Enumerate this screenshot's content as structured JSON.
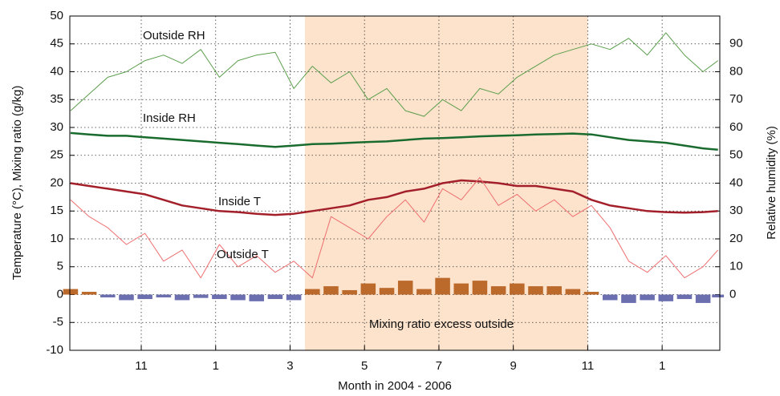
{
  "chart_data": {
    "type": "line",
    "xlabel": "Month in 2004 - 2006",
    "ylabel": "Temperature (°C), Mixing ratio (g/kg)",
    "y2label": "Relative humidity (%)",
    "xlim": [
      9.08,
      26.55
    ],
    "xticks": [
      11,
      {
        "value": 13,
        "label": "1"
      },
      {
        "value": 15,
        "label": "3"
      },
      {
        "value": 17,
        "label": "5"
      },
      {
        "value": 19,
        "label": "7"
      },
      {
        "value": 21,
        "label": "9"
      },
      {
        "value": 23,
        "label": "11"
      },
      {
        "value": 25,
        "label": "1"
      }
    ],
    "ylim": [
      -10,
      50
    ],
    "yticks": [
      -10,
      -5,
      0,
      5,
      10,
      15,
      20,
      25,
      30,
      35,
      40,
      45,
      50
    ],
    "y2lim": [
      -20,
      100
    ],
    "y2ticks": [
      0,
      10,
      20,
      30,
      40,
      50,
      60,
      70,
      80,
      90
    ],
    "grid": true,
    "shaded_span": [
      15.4,
      23
    ],
    "shaded_color": "#fde3cc",
    "x": [
      9.1,
      9.6,
      10.1,
      10.6,
      11.1,
      11.6,
      12.1,
      12.6,
      13.1,
      13.6,
      14.1,
      14.6,
      15.1,
      15.6,
      16.1,
      16.6,
      17.1,
      17.6,
      18.1,
      18.6,
      19.1,
      19.6,
      20.1,
      20.6,
      21.1,
      21.6,
      22.1,
      22.6,
      23.1,
      23.6,
      24.1,
      24.6,
      25.1,
      25.6,
      26.1,
      26.5
    ],
    "series": [
      {
        "name": "Outside RH",
        "color": "#5a9e4b",
        "width": 1,
        "axis": "y2",
        "values": [
          66,
          72,
          78,
          80,
          84,
          86,
          83,
          88,
          78,
          84,
          86,
          87,
          74,
          82,
          76,
          80,
          70,
          74,
          66,
          64,
          70,
          66,
          74,
          72,
          78,
          82,
          86,
          88,
          90,
          88,
          92,
          86,
          94,
          86,
          80,
          84
        ]
      },
      {
        "name": "Inside RH",
        "color": "#1a6b2e",
        "width": 2.5,
        "axis": "y2",
        "values": [
          58,
          57.5,
          57,
          57,
          56.5,
          56,
          55.5,
          55,
          54.5,
          54,
          53.5,
          53,
          53.5,
          54,
          54.2,
          54.5,
          54.8,
          55,
          55.5,
          56,
          56.2,
          56.5,
          56.8,
          57,
          57.2,
          57.5,
          57.6,
          57.8,
          57.5,
          56.5,
          55.5,
          55,
          54.5,
          53.5,
          52.5,
          52
        ]
      },
      {
        "name": "Inside T",
        "color": "#a3202a",
        "width": 2.5,
        "values": [
          20,
          19.5,
          19,
          18.5,
          18,
          17,
          16,
          15.5,
          15,
          14.8,
          14.5,
          14.3,
          14.5,
          15,
          15.5,
          16,
          17,
          17.5,
          18.5,
          19,
          20,
          20.5,
          20.3,
          20,
          19.5,
          19.5,
          19,
          18.5,
          17,
          16,
          15.5,
          15,
          14.8,
          14.7,
          14.8,
          15
        ]
      },
      {
        "name": "Outside T",
        "color": "#ee6f70",
        "width": 1,
        "values": [
          17,
          14,
          12,
          9,
          11,
          6,
          8,
          3,
          9,
          5,
          7,
          4,
          6,
          3,
          14,
          12,
          10,
          14,
          17,
          13,
          19,
          17,
          21,
          16,
          18,
          15,
          17,
          14,
          16,
          12,
          6,
          4,
          7,
          3,
          5,
          8
        ]
      },
      {
        "name": "Mixing ratio excess outside",
        "type": "bar",
        "color": "#bb6a2c",
        "negative_color": "#6b6fb0",
        "values": [
          1,
          0.5,
          -0.5,
          -1,
          -0.8,
          -0.5,
          -1,
          -0.6,
          -0.8,
          -1,
          -1.2,
          -0.8,
          -1,
          1,
          1.5,
          0.8,
          2,
          1.2,
          2.5,
          1,
          3,
          2,
          2.5,
          1.5,
          2,
          1.5,
          1.5,
          1,
          0.5,
          -1,
          -1.5,
          -1,
          -1.2,
          -0.8,
          -1.5,
          -0.5
        ]
      }
    ]
  }
}
